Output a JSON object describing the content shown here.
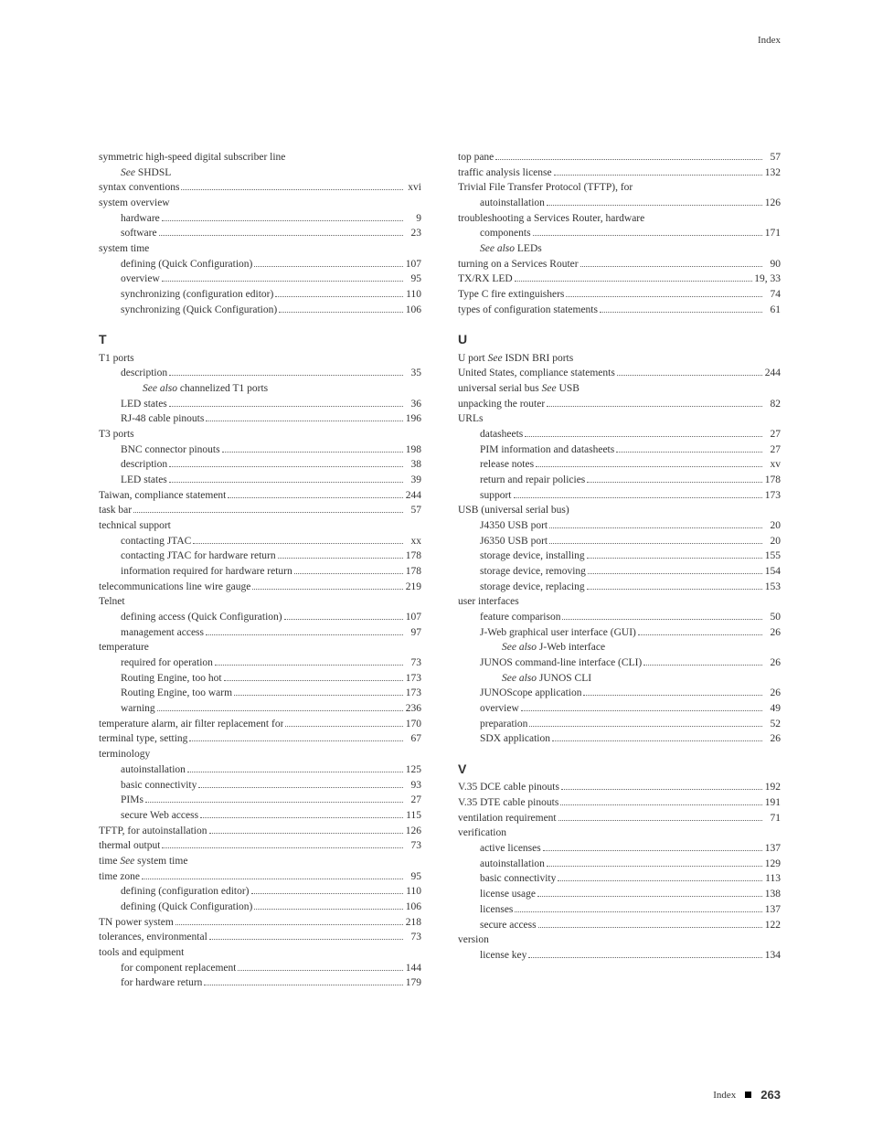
{
  "header": {
    "label": "Index"
  },
  "footer": {
    "label": "Index",
    "page_number": "263"
  },
  "left_column": {
    "items": [
      {
        "type": "line",
        "indent": 0,
        "label": "symmetric high-speed digital subscriber line",
        "page": "",
        "dots": false
      },
      {
        "type": "line",
        "indent": 1,
        "label_html": "<span class='italic'>See</span> SHDSL",
        "page": "",
        "dots": false
      },
      {
        "type": "line",
        "indent": 0,
        "label": "syntax conventions",
        "page": "xvi",
        "dots": true
      },
      {
        "type": "line",
        "indent": 0,
        "label": "system overview",
        "page": "",
        "dots": false
      },
      {
        "type": "line",
        "indent": 1,
        "label": "hardware",
        "page": "9",
        "dots": true
      },
      {
        "type": "line",
        "indent": 1,
        "label": "software",
        "page": "23",
        "dots": true
      },
      {
        "type": "line",
        "indent": 0,
        "label": "system time",
        "page": "",
        "dots": false
      },
      {
        "type": "line",
        "indent": 1,
        "label": "defining (Quick Configuration)",
        "page": "107",
        "dots": true
      },
      {
        "type": "line",
        "indent": 1,
        "label": "overview",
        "page": "95",
        "dots": true
      },
      {
        "type": "line",
        "indent": 1,
        "label": "synchronizing (configuration editor)",
        "page": "110",
        "dots": true
      },
      {
        "type": "line",
        "indent": 1,
        "label": "synchronizing (Quick Configuration)",
        "page": "106",
        "dots": true
      },
      {
        "type": "heading",
        "label": "T"
      },
      {
        "type": "line",
        "indent": 0,
        "label": "T1 ports",
        "page": "",
        "dots": false
      },
      {
        "type": "line",
        "indent": 1,
        "label": "description",
        "page": "35",
        "dots": true
      },
      {
        "type": "line",
        "indent": 2,
        "label_html": "<span class='italic'>See also</span> channelized T1 ports",
        "page": "",
        "dots": false
      },
      {
        "type": "line",
        "indent": 1,
        "label": "LED states",
        "page": "36",
        "dots": true
      },
      {
        "type": "line",
        "indent": 1,
        "label": "RJ-48 cable pinouts",
        "page": "196",
        "dots": true
      },
      {
        "type": "line",
        "indent": 0,
        "label": "T3 ports",
        "page": "",
        "dots": false
      },
      {
        "type": "line",
        "indent": 1,
        "label": "BNC connector pinouts",
        "page": "198",
        "dots": true
      },
      {
        "type": "line",
        "indent": 1,
        "label": "description",
        "page": "38",
        "dots": true
      },
      {
        "type": "line",
        "indent": 1,
        "label": "LED states",
        "page": "39",
        "dots": true
      },
      {
        "type": "line",
        "indent": 0,
        "label": "Taiwan, compliance statement",
        "page": "244",
        "dots": true
      },
      {
        "type": "line",
        "indent": 0,
        "label": "task bar",
        "page": "57",
        "dots": true
      },
      {
        "type": "line",
        "indent": 0,
        "label": "technical support",
        "page": "",
        "dots": false
      },
      {
        "type": "line",
        "indent": 1,
        "label": "contacting JTAC",
        "page": "xx",
        "dots": true
      },
      {
        "type": "line",
        "indent": 1,
        "label": "contacting JTAC for hardware return",
        "page": "178",
        "dots": true
      },
      {
        "type": "line",
        "indent": 1,
        "label": "information required for hardware return",
        "page": "178",
        "dots": true
      },
      {
        "type": "line",
        "indent": 0,
        "label": "telecommunications line wire gauge",
        "page": "219",
        "dots": true
      },
      {
        "type": "line",
        "indent": 0,
        "label": "Telnet",
        "page": "",
        "dots": false
      },
      {
        "type": "line",
        "indent": 1,
        "label": "defining access (Quick Configuration)",
        "page": "107",
        "dots": true
      },
      {
        "type": "line",
        "indent": 1,
        "label": "management access",
        "page": "97",
        "dots": true
      },
      {
        "type": "line",
        "indent": 0,
        "label": "temperature",
        "page": "",
        "dots": false
      },
      {
        "type": "line",
        "indent": 1,
        "label": "required for operation",
        "page": "73",
        "dots": true
      },
      {
        "type": "line",
        "indent": 1,
        "label": "Routing Engine, too hot",
        "page": "173",
        "dots": true
      },
      {
        "type": "line",
        "indent": 1,
        "label": "Routing Engine, too warm",
        "page": "173",
        "dots": true
      },
      {
        "type": "line",
        "indent": 1,
        "label": "warning",
        "page": "236",
        "dots": true
      },
      {
        "type": "line",
        "indent": 0,
        "label": "temperature alarm, air filter replacement for",
        "page": "170",
        "dots": true
      },
      {
        "type": "line",
        "indent": 0,
        "label": "terminal type, setting",
        "page": "67",
        "dots": true
      },
      {
        "type": "line",
        "indent": 0,
        "label": "terminology",
        "page": "",
        "dots": false
      },
      {
        "type": "line",
        "indent": 1,
        "label": "autoinstallation",
        "page": "125",
        "dots": true
      },
      {
        "type": "line",
        "indent": 1,
        "label": "basic connectivity",
        "page": "93",
        "dots": true
      },
      {
        "type": "line",
        "indent": 1,
        "label": "PIMs",
        "page": "27",
        "dots": true
      },
      {
        "type": "line",
        "indent": 1,
        "label": "secure Web access",
        "page": "115",
        "dots": true
      },
      {
        "type": "line",
        "indent": 0,
        "label": "TFTP, for autoinstallation",
        "page": "126",
        "dots": true
      },
      {
        "type": "line",
        "indent": 0,
        "label": "thermal output",
        "page": "73",
        "dots": true
      },
      {
        "type": "line",
        "indent": 0,
        "label_html": "time <span class='italic'>See</span> system time",
        "page": "",
        "dots": false
      },
      {
        "type": "line",
        "indent": 0,
        "label": "time zone",
        "page": "95",
        "dots": true
      },
      {
        "type": "line",
        "indent": 1,
        "label": "defining (configuration editor)",
        "page": "110",
        "dots": true
      },
      {
        "type": "line",
        "indent": 1,
        "label": "defining (Quick Configuration)",
        "page": "106",
        "dots": true
      },
      {
        "type": "line",
        "indent": 0,
        "label": "TN power system",
        "page": "218",
        "dots": true
      },
      {
        "type": "line",
        "indent": 0,
        "label": "tolerances, environmental",
        "page": "73",
        "dots": true
      },
      {
        "type": "line",
        "indent": 0,
        "label": "tools and equipment",
        "page": "",
        "dots": false
      },
      {
        "type": "line",
        "indent": 1,
        "label": "for component replacement",
        "page": "144",
        "dots": true
      },
      {
        "type": "line",
        "indent": 1,
        "label": "for hardware return",
        "page": "179",
        "dots": true
      }
    ]
  },
  "right_column": {
    "items": [
      {
        "type": "line",
        "indent": 0,
        "label": "top pane",
        "page": "57",
        "dots": true
      },
      {
        "type": "line",
        "indent": 0,
        "label": "traffic analysis license",
        "page": "132",
        "dots": true
      },
      {
        "type": "line",
        "indent": 0,
        "label": "Trivial File Transfer Protocol (TFTP), for",
        "page": "",
        "dots": false
      },
      {
        "type": "line",
        "indent": 1,
        "label": "autoinstallation",
        "page": "126",
        "dots": true
      },
      {
        "type": "line",
        "indent": 0,
        "label": "troubleshooting a Services Router, hardware",
        "page": "",
        "dots": false
      },
      {
        "type": "line",
        "indent": 1,
        "label": "components",
        "page": "171",
        "dots": true
      },
      {
        "type": "line",
        "indent": 1,
        "label_html": "<span class='italic'>See also</span> LEDs",
        "page": "",
        "dots": false
      },
      {
        "type": "line",
        "indent": 0,
        "label": "turning on a Services Router",
        "page": "90",
        "dots": true
      },
      {
        "type": "line",
        "indent": 0,
        "label": "TX/RX LED",
        "page": "19, 33",
        "dots": true
      },
      {
        "type": "line",
        "indent": 0,
        "label": "Type C fire extinguishers",
        "page": "74",
        "dots": true
      },
      {
        "type": "line",
        "indent": 0,
        "label": "types of configuration statements",
        "page": "61",
        "dots": true
      },
      {
        "type": "heading",
        "label": "U"
      },
      {
        "type": "line",
        "indent": 0,
        "label_html": "U port <span class='italic'>See</span> ISDN BRI ports",
        "page": "",
        "dots": false
      },
      {
        "type": "line",
        "indent": 0,
        "label": "United States, compliance statements",
        "page": "244",
        "dots": true
      },
      {
        "type": "line",
        "indent": 0,
        "label_html": "universal serial bus <span class='italic'>See</span> USB",
        "page": "",
        "dots": false
      },
      {
        "type": "line",
        "indent": 0,
        "label": "unpacking the router",
        "page": "82",
        "dots": true
      },
      {
        "type": "line",
        "indent": 0,
        "label": "URLs",
        "page": "",
        "dots": false
      },
      {
        "type": "line",
        "indent": 1,
        "label": "datasheets",
        "page": "27",
        "dots": true
      },
      {
        "type": "line",
        "indent": 1,
        "label": "PIM information and datasheets",
        "page": "27",
        "dots": true
      },
      {
        "type": "line",
        "indent": 1,
        "label": "release notes",
        "page": "xv",
        "dots": true
      },
      {
        "type": "line",
        "indent": 1,
        "label": "return and repair policies",
        "page": "178",
        "dots": true
      },
      {
        "type": "line",
        "indent": 1,
        "label": "support",
        "page": "173",
        "dots": true
      },
      {
        "type": "line",
        "indent": 0,
        "label": "USB (universal serial bus)",
        "page": "",
        "dots": false
      },
      {
        "type": "line",
        "indent": 1,
        "label": "J4350 USB port",
        "page": "20",
        "dots": true
      },
      {
        "type": "line",
        "indent": 1,
        "label": "J6350 USB port",
        "page": "20",
        "dots": true
      },
      {
        "type": "line",
        "indent": 1,
        "label": "storage device, installing",
        "page": "155",
        "dots": true
      },
      {
        "type": "line",
        "indent": 1,
        "label": "storage device, removing",
        "page": "154",
        "dots": true
      },
      {
        "type": "line",
        "indent": 1,
        "label": "storage device, replacing",
        "page": "153",
        "dots": true
      },
      {
        "type": "line",
        "indent": 0,
        "label": "user interfaces",
        "page": "",
        "dots": false
      },
      {
        "type": "line",
        "indent": 1,
        "label": "feature comparison",
        "page": "50",
        "dots": true
      },
      {
        "type": "line",
        "indent": 1,
        "label": "J-Web graphical user interface (GUI)",
        "page": "26",
        "dots": true
      },
      {
        "type": "line",
        "indent": 2,
        "label_html": "<span class='italic'>See also</span> J-Web interface",
        "page": "",
        "dots": false
      },
      {
        "type": "line",
        "indent": 1,
        "label": "JUNOS command-line interface (CLI)",
        "page": "26",
        "dots": true
      },
      {
        "type": "line",
        "indent": 2,
        "label_html": "<span class='italic'>See also</span> JUNOS CLI",
        "page": "",
        "dots": false
      },
      {
        "type": "line",
        "indent": 1,
        "label": "JUNOScope application",
        "page": "26",
        "dots": true
      },
      {
        "type": "line",
        "indent": 1,
        "label": "overview",
        "page": "49",
        "dots": true
      },
      {
        "type": "line",
        "indent": 1,
        "label": "preparation",
        "page": "52",
        "dots": true
      },
      {
        "type": "line",
        "indent": 1,
        "label": "SDX application",
        "page": "26",
        "dots": true
      },
      {
        "type": "heading",
        "label": "V"
      },
      {
        "type": "line",
        "indent": 0,
        "label": "V.35 DCE cable pinouts",
        "page": "192",
        "dots": true
      },
      {
        "type": "line",
        "indent": 0,
        "label": "V.35 DTE cable pinouts",
        "page": "191",
        "dots": true
      },
      {
        "type": "line",
        "indent": 0,
        "label": "ventilation requirement",
        "page": "71",
        "dots": true
      },
      {
        "type": "line",
        "indent": 0,
        "label": "verification",
        "page": "",
        "dots": false
      },
      {
        "type": "line",
        "indent": 1,
        "label": "active licenses",
        "page": "137",
        "dots": true
      },
      {
        "type": "line",
        "indent": 1,
        "label": "autoinstallation",
        "page": "129",
        "dots": true
      },
      {
        "type": "line",
        "indent": 1,
        "label": "basic connectivity",
        "page": "113",
        "dots": true
      },
      {
        "type": "line",
        "indent": 1,
        "label": "license usage",
        "page": "138",
        "dots": true
      },
      {
        "type": "line",
        "indent": 1,
        "label": "licenses",
        "page": "137",
        "dots": true
      },
      {
        "type": "line",
        "indent": 1,
        "label": "secure access",
        "page": "122",
        "dots": true
      },
      {
        "type": "line",
        "indent": 0,
        "label": "version",
        "page": "",
        "dots": false
      },
      {
        "type": "line",
        "indent": 1,
        "label": "license key",
        "page": "134",
        "dots": true
      }
    ]
  }
}
